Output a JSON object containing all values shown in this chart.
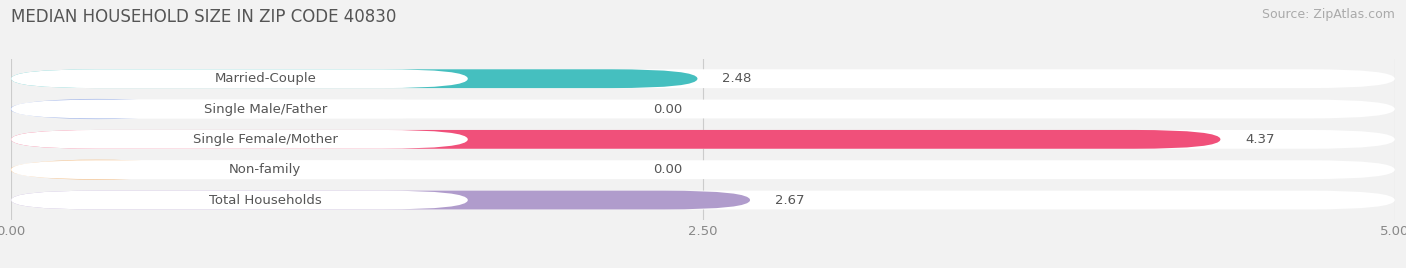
{
  "title": "MEDIAN HOUSEHOLD SIZE IN ZIP CODE 40830",
  "source": "Source: ZipAtlas.com",
  "categories": [
    "Married-Couple",
    "Single Male/Father",
    "Single Female/Mother",
    "Non-family",
    "Total Households"
  ],
  "values": [
    2.48,
    0.0,
    4.37,
    0.0,
    2.67
  ],
  "bar_colors": [
    "#45BFBF",
    "#A0B4E8",
    "#F0507A",
    "#F5C898",
    "#B09CCC"
  ],
  "xlim": [
    0,
    5.0
  ],
  "xticks": [
    0.0,
    2.5,
    5.0
  ],
  "xtick_labels": [
    "0.00",
    "2.50",
    "5.00"
  ],
  "background_color": "#f2f2f2",
  "bar_bg_color": "#ffffff",
  "label_bg_color": "#ffffff",
  "title_fontsize": 12,
  "label_fontsize": 9.5,
  "value_fontsize": 9.5,
  "source_fontsize": 9
}
